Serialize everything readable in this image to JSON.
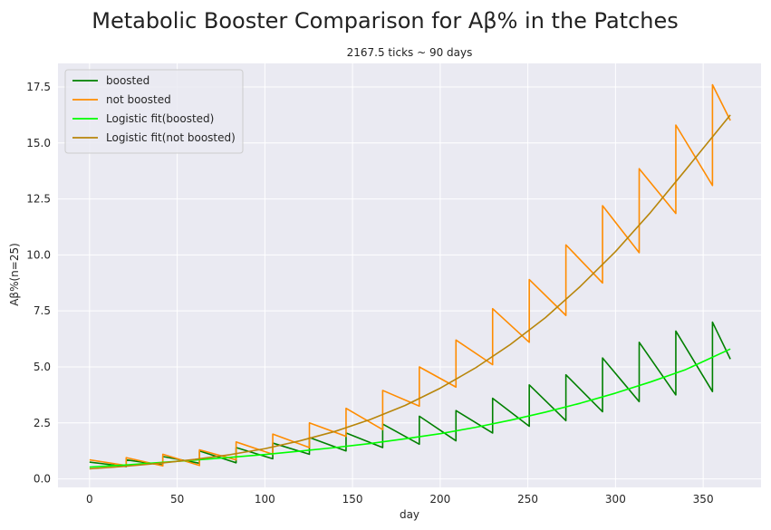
{
  "chart_data": {
    "type": "line",
    "title": "Metabolic Booster Comparison for Aβ% in the Patches",
    "subtitle": "2167.5 ticks ~ 90 days",
    "xlabel": "day",
    "ylabel": "Aβ%(n=25)",
    "xlim": [
      -18,
      383
    ],
    "ylim": [
      -0.38,
      18.55
    ],
    "xticks": [
      0,
      50,
      100,
      150,
      200,
      250,
      300,
      350
    ],
    "yticks": [
      0.0,
      2.5,
      5.0,
      7.5,
      10.0,
      12.5,
      15.0,
      17.5
    ],
    "xtick_labels": [
      "0",
      "50",
      "100",
      "150",
      "200",
      "250",
      "300",
      "350"
    ],
    "ytick_labels": [
      "0.0",
      "2.5",
      "5.0",
      "7.5",
      "10.0",
      "12.5",
      "15.0",
      "17.5"
    ],
    "grid": true,
    "legend_position": "top-left",
    "background": "#eaeaf2",
    "series": [
      {
        "name": "boosted",
        "color": "#008000",
        "x": [
          0,
          20.9,
          20.9,
          41.8,
          41.8,
          62.7,
          62.7,
          83.6,
          83.6,
          104.5,
          104.5,
          125.4,
          125.4,
          146.3,
          146.3,
          167.2,
          167.2,
          188.1,
          188.1,
          209,
          209,
          229.9,
          229.9,
          250.8,
          250.8,
          271.7,
          271.7,
          292.6,
          292.6,
          313.5,
          313.5,
          334.4,
          334.4,
          355.3,
          355.3,
          365.5
        ],
        "y": [
          0.75,
          0.55,
          0.85,
          0.62,
          1.0,
          0.7,
          1.25,
          0.72,
          1.4,
          0.9,
          1.6,
          1.1,
          1.85,
          1.25,
          2.05,
          1.4,
          2.45,
          1.55,
          2.8,
          1.7,
          3.05,
          2.05,
          3.6,
          2.35,
          4.2,
          2.6,
          4.65,
          3.0,
          5.4,
          3.45,
          6.1,
          3.75,
          6.6,
          3.9,
          7.0,
          5.35
        ]
      },
      {
        "name": "not boosted",
        "color": "#ff8c00",
        "x": [
          0,
          20.9,
          20.9,
          41.8,
          41.8,
          62.7,
          62.7,
          83.6,
          83.6,
          104.5,
          104.5,
          125.4,
          125.4,
          146.3,
          146.3,
          167.2,
          167.2,
          188.1,
          188.1,
          209,
          209,
          229.9,
          229.9,
          250.8,
          250.8,
          271.7,
          271.7,
          292.6,
          292.6,
          313.5,
          313.5,
          334.4,
          334.4,
          355.3,
          355.3,
          365.5
        ],
        "y": [
          0.85,
          0.6,
          0.95,
          0.58,
          1.1,
          0.6,
          1.3,
          0.85,
          1.65,
          1.1,
          2.0,
          1.4,
          2.5,
          1.9,
          3.15,
          2.2,
          3.95,
          3.25,
          5.0,
          4.1,
          6.2,
          5.1,
          7.6,
          6.1,
          8.9,
          7.3,
          10.45,
          8.75,
          12.2,
          10.1,
          13.85,
          11.85,
          15.8,
          13.1,
          17.6,
          16.0
        ]
      },
      {
        "name": "Logistic fit(boosted)",
        "color": "#00ff00",
        "x": [
          0,
          20,
          40,
          60,
          80,
          100,
          120,
          140,
          160,
          180,
          200,
          220,
          240,
          260,
          280,
          300,
          320,
          340,
          365.5
        ],
        "y": [
          0.53,
          0.62,
          0.73,
          0.84,
          0.96,
          1.09,
          1.24,
          1.4,
          1.58,
          1.79,
          2.02,
          2.3,
          2.62,
          2.98,
          3.38,
          3.83,
          4.33,
          4.88,
          5.8
        ]
      },
      {
        "name": "Logistic fit(not boosted)",
        "color": "#b8860b",
        "x": [
          0,
          20,
          40,
          60,
          80,
          100,
          120,
          140,
          160,
          180,
          200,
          220,
          240,
          260,
          280,
          300,
          320,
          340,
          365.5
        ],
        "y": [
          0.45,
          0.56,
          0.7,
          0.87,
          1.08,
          1.35,
          1.7,
          2.12,
          2.65,
          3.28,
          4.05,
          4.95,
          6.0,
          7.2,
          8.6,
          10.15,
          11.9,
          13.8,
          16.25
        ]
      }
    ]
  }
}
